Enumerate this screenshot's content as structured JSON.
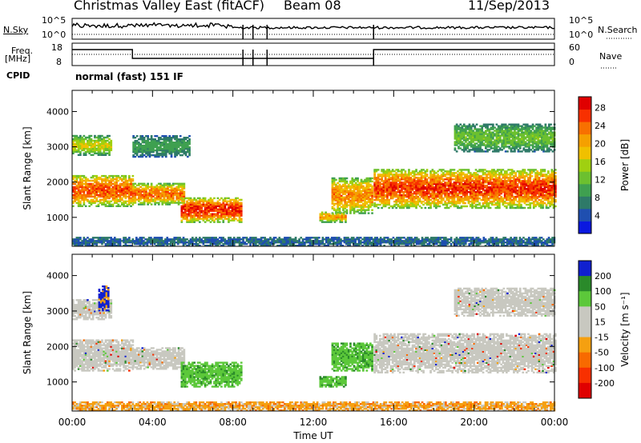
{
  "header": {
    "site": "Christmas Valley East (fitACF)",
    "beam": "Beam 08",
    "date": "11/Sep/2013"
  },
  "side_labels": {
    "nsky": "N.Sky",
    "nsearch": "N.Search",
    "freq": "Freq.",
    "freq_unit": "[MHz]",
    "nave": "Nave",
    "cpid": "CPID",
    "cpid_value": "normal (fast) 151 IF"
  },
  "noise_ticks": {
    "left": [
      "10^5",
      "10^0"
    ],
    "right": [
      "10^5",
      "10^0"
    ]
  },
  "freq_ticks": {
    "left": [
      "18",
      "8"
    ],
    "right": [
      "60",
      "0"
    ]
  },
  "chart_data": [
    {
      "type": "heatmap",
      "name": "power",
      "ylabel": "Slant Range [km]",
      "xlabel": "",
      "x_ticks": [
        "00:00",
        "04:00",
        "08:00",
        "12:00",
        "16:00",
        "20:00",
        "00:00"
      ],
      "y_ticks": [
        1000,
        2000,
        3000,
        4000
      ],
      "ylim": [
        180,
        4600
      ],
      "xlim_hours": [
        0,
        24
      ],
      "colorbar": {
        "label": "Power [dB]",
        "ticks": [
          "4",
          "8",
          "12",
          "16",
          "20",
          "24",
          "28"
        ],
        "colors": [
          "#0a18e0",
          "#1f4fb0",
          "#2e7a68",
          "#3fa050",
          "#6cc02f",
          "#a0d010",
          "#f0c000",
          "#f5a000",
          "#f87000",
          "#f83000",
          "#e00000"
        ]
      },
      "bands": [
        {
          "t0": 0.0,
          "t1": 3.0,
          "r0": 1300,
          "r1": 2200,
          "peak": 0.85
        },
        {
          "t0": 0.0,
          "t1": 1.9,
          "r0": 2750,
          "r1": 3300,
          "peak": 0.55
        },
        {
          "t0": 3.0,
          "t1": 5.6,
          "r0": 1350,
          "r1": 1950,
          "peak": 0.8
        },
        {
          "t0": 5.4,
          "t1": 8.4,
          "r0": 850,
          "r1": 1550,
          "peak": 0.95
        },
        {
          "t0": 3.0,
          "t1": 5.8,
          "r0": 2700,
          "r1": 3300,
          "peak": 0.3
        },
        {
          "t0": 12.9,
          "t1": 14.9,
          "r0": 1100,
          "r1": 2100,
          "peak": 0.75
        },
        {
          "t0": 12.3,
          "t1": 13.6,
          "r0": 850,
          "r1": 1150,
          "peak": 0.7
        },
        {
          "t0": 15.0,
          "t1": 24.0,
          "r0": 1250,
          "r1": 2350,
          "peak": 0.9
        },
        {
          "t0": 19.0,
          "t1": 24.0,
          "r0": 2850,
          "r1": 3650,
          "peak": 0.4
        },
        {
          "t0": 0.0,
          "t1": 24.0,
          "r0": 180,
          "r1": 420,
          "peak": 0.15
        }
      ]
    },
    {
      "type": "heatmap",
      "name": "velocity",
      "ylabel": "Slant Range [km]",
      "xlabel": "Time UT",
      "x_ticks": [
        "00:00",
        "04:00",
        "08:00",
        "12:00",
        "16:00",
        "20:00",
        "00:00"
      ],
      "y_ticks": [
        1000,
        2000,
        3000,
        4000
      ],
      "ylim": [
        180,
        4600
      ],
      "xlim_hours": [
        0,
        24
      ],
      "colorbar": {
        "label": "Velocity [m s⁻¹]",
        "ticks": [
          "200",
          "100",
          "50",
          "15",
          "-15",
          "-50",
          "-100",
          "-200"
        ],
        "colors": [
          "#1020d0",
          "#2a8a2a",
          "#5cc83a",
          "#c8c8c0",
          "#c8c8c0",
          "#f5a010",
          "#f86a00",
          "#f83000",
          "#e00000"
        ]
      },
      "bands": [
        {
          "t0": 0.0,
          "t1": 3.0,
          "r0": 1300,
          "r1": 2200,
          "cls": "ground"
        },
        {
          "t0": 0.0,
          "t1": 1.9,
          "r0": 2750,
          "r1": 3300,
          "cls": "ground"
        },
        {
          "t0": 3.0,
          "t1": 5.6,
          "r0": 1350,
          "r1": 1950,
          "cls": "ground"
        },
        {
          "t0": 5.4,
          "t1": 8.4,
          "r0": 850,
          "r1": 1550,
          "cls": "pos"
        },
        {
          "t0": 12.9,
          "t1": 14.9,
          "r0": 1300,
          "r1": 2100,
          "cls": "pos"
        },
        {
          "t0": 12.3,
          "t1": 13.6,
          "r0": 850,
          "r1": 1150,
          "cls": "pos"
        },
        {
          "t0": 15.0,
          "t1": 24.0,
          "r0": 1250,
          "r1": 2350,
          "cls": "ground"
        },
        {
          "t0": 19.0,
          "t1": 24.0,
          "r0": 2850,
          "r1": 3650,
          "cls": "ground"
        },
        {
          "t0": 1.3,
          "t1": 1.8,
          "r0": 3000,
          "r1": 3700,
          "cls": "neg"
        },
        {
          "t0": 0.0,
          "t1": 24.0,
          "r0": 180,
          "r1": 420,
          "cls": "negslow"
        }
      ]
    }
  ]
}
